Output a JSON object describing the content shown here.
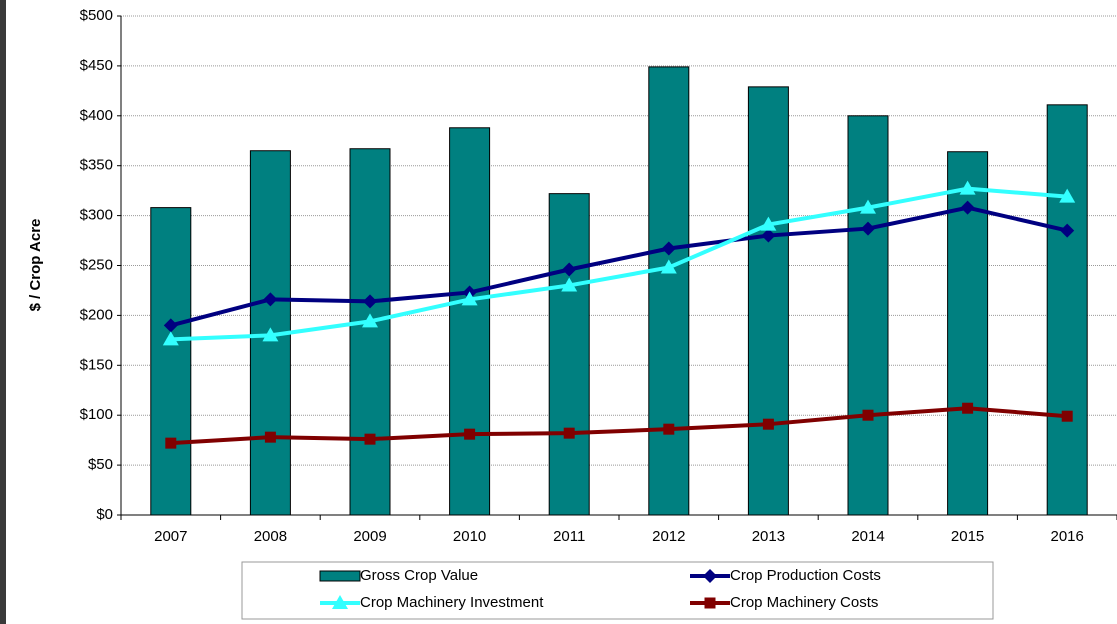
{
  "chart_data": {
    "type": "bar",
    "y_label": "$ / Crop Acre",
    "categories": [
      "2007",
      "2008",
      "2009",
      "2010",
      "2011",
      "2012",
      "2013",
      "2014",
      "2015",
      "2016"
    ],
    "ylim": [
      0,
      500
    ],
    "yticks": [
      {
        "value": 0,
        "label": "$0"
      },
      {
        "value": 50,
        "label": "$50"
      },
      {
        "value": 100,
        "label": "$100"
      },
      {
        "value": 150,
        "label": "$150"
      },
      {
        "value": 200,
        "label": "$200"
      },
      {
        "value": 250,
        "label": "$250"
      },
      {
        "value": 300,
        "label": "$300"
      },
      {
        "value": 350,
        "label": "$350"
      },
      {
        "value": 400,
        "label": "$400"
      },
      {
        "value": 450,
        "label": "$450"
      },
      {
        "value": 500,
        "label": "$500"
      }
    ],
    "grid": true,
    "legend": "bottom",
    "series": [
      {
        "name": "Gross Crop Value",
        "type": "bar",
        "color": "#008080",
        "values": [
          308,
          365,
          367,
          388,
          322,
          449,
          429,
          400,
          364,
          411
        ]
      },
      {
        "name": "Crop Production Costs",
        "type": "line",
        "marker": "diamond",
        "color": "#000080",
        "values": [
          190,
          216,
          214,
          223,
          246,
          267,
          280,
          287,
          308,
          285
        ]
      },
      {
        "name": "Crop Machinery Investment",
        "type": "line",
        "marker": "triangle",
        "color": "#33ffff",
        "values": [
          176,
          180,
          194,
          216,
          230,
          248,
          291,
          308,
          327,
          319
        ]
      },
      {
        "name": "Crop Machinery Costs",
        "type": "line",
        "marker": "square",
        "color": "#800000",
        "values": [
          72,
          78,
          76,
          81,
          82,
          86,
          91,
          100,
          107,
          99
        ]
      }
    ]
  }
}
